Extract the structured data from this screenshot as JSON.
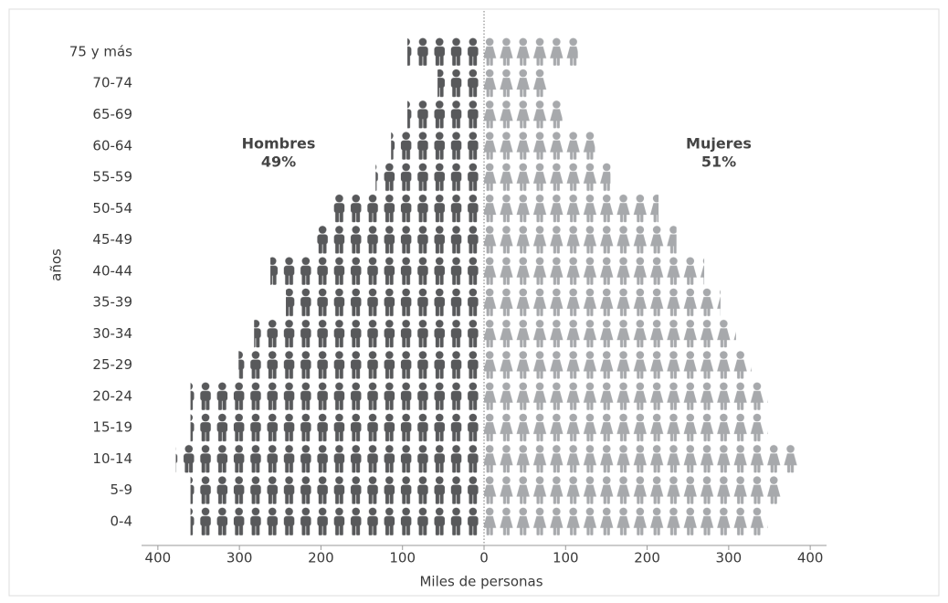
{
  "chart_data": {
    "type": "pictogram-pyramid",
    "y_label": "años",
    "x_label": "Miles de personas",
    "categories": [
      "0-4",
      "5-9",
      "10-14",
      "15-19",
      "20-24",
      "25-29",
      "30-34",
      "35-39",
      "40-44",
      "45-49",
      "50-54",
      "55-59",
      "60-64",
      "65-69",
      "70-74",
      "75 y más"
    ],
    "series": [
      {
        "name": "Hombres",
        "color": "#58595b",
        "share_label": "49%",
        "values": [
          -360,
          -360,
          -378,
          -360,
          -360,
          -301,
          -282,
          -243,
          -262,
          -207,
          -189,
          -133,
          -114,
          -94,
          -57,
          -94
        ]
      },
      {
        "name": "Mujeres",
        "color": "#a7a9ac",
        "share_label": "51%",
        "values": [
          348,
          367,
          387,
          348,
          348,
          328,
          309,
          290,
          270,
          236,
          214,
          155,
          136,
          96,
          77,
          115
        ]
      }
    ],
    "xlim": [
      -420,
      420
    ],
    "xticks": [
      {
        "value": -400,
        "label": "400"
      },
      {
        "value": -300,
        "label": "300"
      },
      {
        "value": -200,
        "label": "200"
      },
      {
        "value": -100,
        "label": "100"
      },
      0,
      100,
      200,
      300,
      400
    ]
  }
}
